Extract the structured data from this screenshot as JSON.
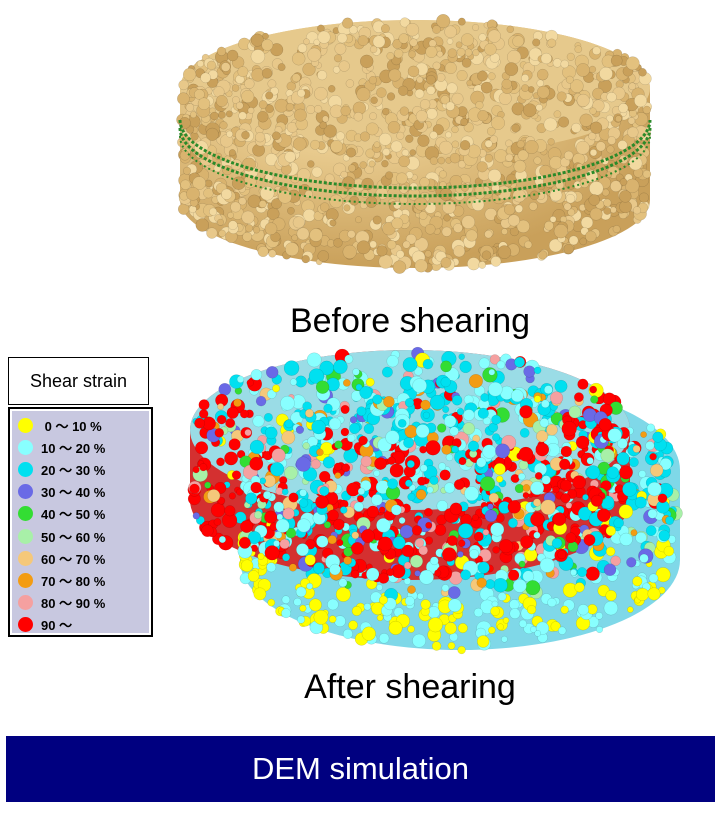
{
  "captions": {
    "before": "Before shearing",
    "after": "After shearing"
  },
  "legend": {
    "title": "Shear strain",
    "items": [
      {
        "label": " 0 ～ 10 %",
        "color": "#ffff00"
      },
      {
        "label": "10 ～ 20 %",
        "color": "#88ffff"
      },
      {
        "label": "20 ～ 30 %",
        "color": "#00e0f0"
      },
      {
        "label": "30 ～ 40 %",
        "color": "#6a6ae6"
      },
      {
        "label": "40 ～ 50 %",
        "color": "#33dd33"
      },
      {
        "label": "50 ～ 60 %",
        "color": "#a8f0a8"
      },
      {
        "label": "60 ～ 70 %",
        "color": "#f5c87a"
      },
      {
        "label": "70 ～ 80 %",
        "color": "#f39c12"
      },
      {
        "label": "80 ～ 90 %",
        "color": "#f5a0a0"
      },
      {
        "label": "90 ～",
        "color": "#ff0000"
      }
    ]
  },
  "banner": {
    "label": "DEM simulation"
  },
  "colors": {
    "particle_before": "#e3c17e",
    "shear_band": "#2a8a2a",
    "banner_bg": "#000080"
  }
}
